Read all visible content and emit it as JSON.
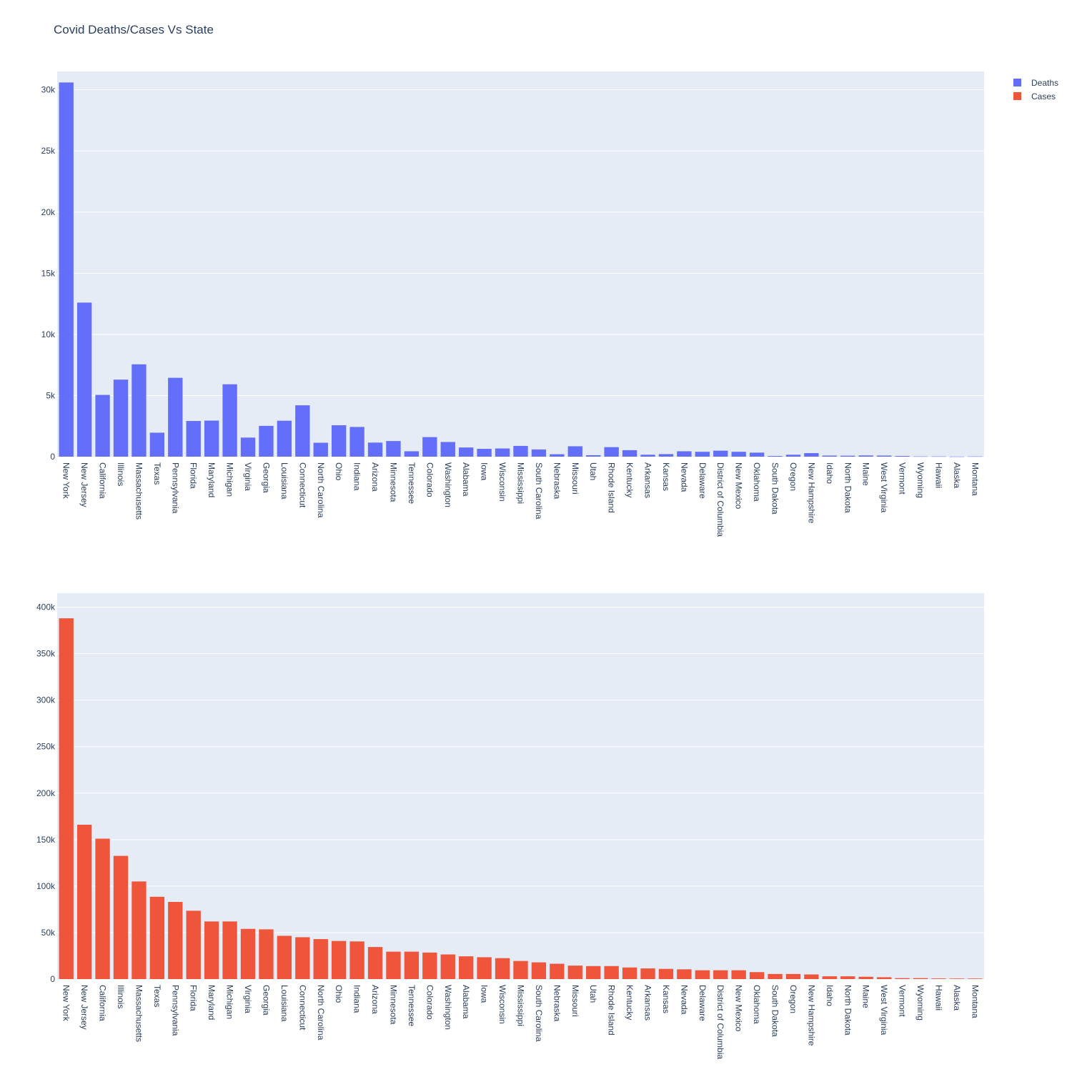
{
  "title": "Covid Deaths/Cases Vs State",
  "legend": [
    {
      "name": "Deaths",
      "color": "#636efa"
    },
    {
      "name": "Cases",
      "color": "#ef553b"
    }
  ],
  "chart_data": [
    {
      "type": "bar",
      "series_name": "Deaths",
      "color": "#636efa",
      "ylim": [
        0,
        31500
      ],
      "yticks": [
        0,
        5000,
        10000,
        15000,
        20000,
        25000,
        30000
      ],
      "yticklabels": [
        "0",
        "5k",
        "10k",
        "15k",
        "20k",
        "25k",
        "30k"
      ],
      "categories": [
        "New York",
        "New Jersey",
        "California",
        "Illinois",
        "Massachusetts",
        "Texas",
        "Pennsylvania",
        "Florida",
        "Maryland",
        "Michigan",
        "Virginia",
        "Georgia",
        "Louisiana",
        "Connecticut",
        "North Carolina",
        "Ohio",
        "Indiana",
        "Arizona",
        "Minnesota",
        "Tennessee",
        "Colorado",
        "Washington",
        "Alabama",
        "Iowa",
        "Wisconsin",
        "Mississippi",
        "South Carolina",
        "Nebraska",
        "Missouri",
        "Utah",
        "Rhode Island",
        "Kentucky",
        "Arkansas",
        "Kansas",
        "Nevada",
        "Delaware",
        "District of Columbia",
        "New Mexico",
        "Oklahoma",
        "South Dakota",
        "Oregon",
        "New Hampshire",
        "Idaho",
        "North Dakota",
        "Maine",
        "West Virginia",
        "Vermont",
        "Wyoming",
        "Hawaii",
        "Alaska",
        "Montana"
      ],
      "values": [
        30600,
        12600,
        5050,
        6300,
        7550,
        1960,
        6450,
        2920,
        2950,
        5920,
        1560,
        2520,
        2940,
        4200,
        1140,
        2570,
        2430,
        1150,
        1280,
        440,
        1600,
        1200,
        750,
        640,
        670,
        880,
        590,
        200,
        850,
        120,
        780,
        530,
        160,
        210,
        440,
        400,
        490,
        400,
        330,
        60,
        160,
        290,
        90,
        80,
        100,
        90,
        60,
        20,
        20,
        10,
        20
      ]
    },
    {
      "type": "bar",
      "series_name": "Cases",
      "color": "#ef553b",
      "ylim": [
        0,
        415000
      ],
      "yticks": [
        0,
        50000,
        100000,
        150000,
        200000,
        250000,
        300000,
        350000,
        400000
      ],
      "yticklabels": [
        "0",
        "50k",
        "100k",
        "150k",
        "200k",
        "250k",
        "300k",
        "350k",
        "400k"
      ],
      "categories": [
        "New York",
        "New Jersey",
        "California",
        "Illinois",
        "Massachusetts",
        "Texas",
        "Pennsylvania",
        "Florida",
        "Maryland",
        "Michigan",
        "Virginia",
        "Georgia",
        "Louisiana",
        "Connecticut",
        "North Carolina",
        "Ohio",
        "Indiana",
        "Arizona",
        "Minnesota",
        "Tennessee",
        "Colorado",
        "Washington",
        "Alabama",
        "Iowa",
        "Wisconsin",
        "Mississippi",
        "South Carolina",
        "Nebraska",
        "Missouri",
        "Utah",
        "Rhode Island",
        "Kentucky",
        "Arkansas",
        "Kansas",
        "Nevada",
        "Delaware",
        "District of Columbia",
        "New Mexico",
        "Oklahoma",
        "South Dakota",
        "Oregon",
        "New Hampshire",
        "Idaho",
        "North Dakota",
        "Maine",
        "West Virginia",
        "Vermont",
        "Wyoming",
        "Hawaii",
        "Alaska",
        "Montana"
      ],
      "values": [
        388000,
        166000,
        151000,
        132500,
        105000,
        88500,
        83000,
        73500,
        62000,
        62000,
        54000,
        53500,
        46500,
        45000,
        43000,
        41000,
        40500,
        34500,
        29500,
        29500,
        28500,
        26500,
        24500,
        23500,
        22500,
        19500,
        18000,
        16500,
        14500,
        14000,
        14000,
        12500,
        11500,
        11000,
        10500,
        9500,
        9500,
        9500,
        7500,
        5500,
        5500,
        5000,
        3000,
        3000,
        2500,
        2000,
        1000,
        1000,
        700,
        600,
        600
      ]
    }
  ]
}
